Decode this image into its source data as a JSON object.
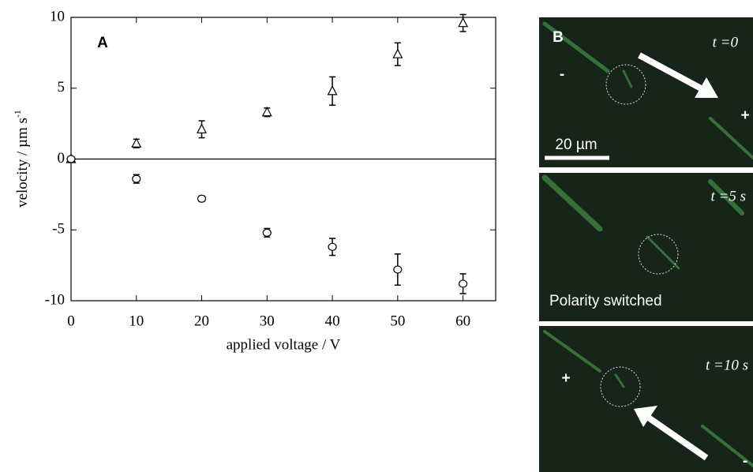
{
  "chart_data": {
    "type": "scatter",
    "panel_label": "A",
    "x_label": "applied voltage / V",
    "y_label": "velocity / µm s",
    "y_label_sup": "-1",
    "x": [
      0,
      10,
      20,
      30,
      40,
      50,
      60
    ],
    "series": [
      {
        "marker": "triangle",
        "color": "#000000",
        "values": [
          0,
          1.1,
          2.1,
          3.3,
          4.8,
          7.4,
          9.6
        ],
        "errors": [
          0,
          0.3,
          0.6,
          0.3,
          1.0,
          0.8,
          0.6
        ]
      },
      {
        "marker": "circle",
        "color": "#000000",
        "values": [
          0,
          -1.4,
          -2.8,
          -5.2,
          -6.2,
          -7.8,
          -8.8
        ],
        "errors": [
          0,
          0.3,
          0.2,
          0.3,
          0.6,
          1.1,
          0.7
        ]
      }
    ],
    "xlim": [
      0,
      65
    ],
    "ylim": [
      -10,
      10
    ],
    "xticks": [
      0,
      10,
      20,
      30,
      40,
      50,
      60
    ],
    "yticks": [
      -10,
      -5,
      0,
      5,
      10
    ],
    "zero_line": true
  },
  "panel_b": {
    "label": "B",
    "scale_bar": "20 µm",
    "frames": [
      {
        "time": "t =0",
        "minus": "-",
        "plus": "+"
      },
      {
        "time": "t =5 s",
        "note": "Polarity switched"
      },
      {
        "time": "t =10 s",
        "minus": "-",
        "plus": "+"
      }
    ]
  }
}
